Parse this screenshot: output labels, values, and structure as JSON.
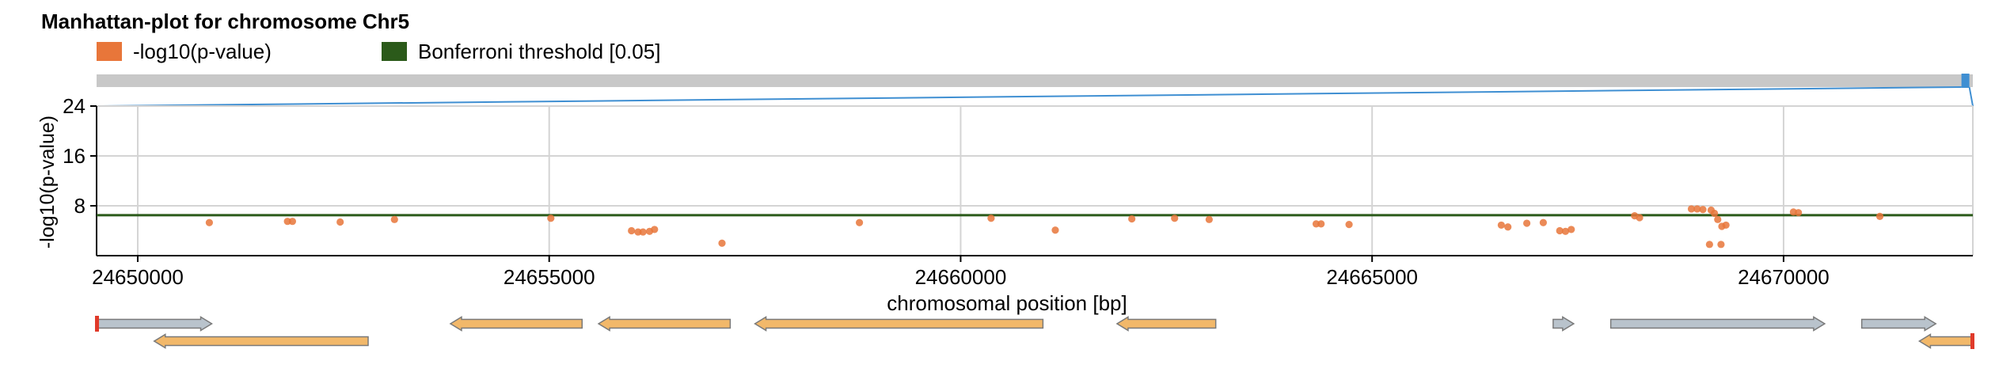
{
  "chart_data": {
    "type": "scatter",
    "title": "Manhattan-plot for chromosome Chr5",
    "xlabel": "chromosomal position [bp]",
    "ylabel": "-log10(p-value)",
    "xlim": [
      24649500,
      24672300
    ],
    "ylim": [
      0,
      24
    ],
    "xticks": [
      {
        "value": 24650000,
        "label": "24650000"
      },
      {
        "value": 24655000,
        "label": "24655000"
      },
      {
        "value": 24660000,
        "label": "24660000"
      },
      {
        "value": 24665000,
        "label": "24665000"
      },
      {
        "value": 24670000,
        "label": "24670000"
      }
    ],
    "yticks": [
      {
        "value": 24,
        "label": "24"
      },
      {
        "value": 16,
        "label": "16"
      },
      {
        "value": 8,
        "label": "8"
      }
    ],
    "grid": true,
    "legend": {
      "placement": "top-left",
      "entries": [
        {
          "label": "-log10(p-value)",
          "color": "#e8763a"
        },
        {
          "label": "Bonferroni threshold [0.05]",
          "color": "#2b5a1a"
        }
      ]
    },
    "threshold": {
      "name": "Bonferroni threshold [0.05]",
      "value": 6.5,
      "color": "#2b5a1a"
    },
    "series": [
      {
        "name": "-log10(p-value)",
        "color": "#e8763a",
        "points": [
          [
            24650870,
            5.3
          ],
          [
            24651820,
            5.5
          ],
          [
            24651880,
            5.5
          ],
          [
            24652460,
            5.4
          ],
          [
            24653120,
            5.8
          ],
          [
            24655020,
            6.0
          ],
          [
            24656000,
            4.0
          ],
          [
            24656080,
            3.8
          ],
          [
            24656140,
            3.8
          ],
          [
            24656220,
            3.9
          ],
          [
            24656280,
            4.2
          ],
          [
            24657100,
            2.0
          ],
          [
            24658770,
            5.3
          ],
          [
            24660370,
            6.0
          ],
          [
            24661150,
            4.1
          ],
          [
            24662080,
            5.9
          ],
          [
            24662600,
            6.0
          ],
          [
            24663020,
            5.8
          ],
          [
            24664320,
            5.1
          ],
          [
            24664380,
            5.1
          ],
          [
            24664720,
            5.0
          ],
          [
            24666570,
            4.9
          ],
          [
            24666650,
            4.6
          ],
          [
            24666880,
            5.2
          ],
          [
            24667080,
            5.3
          ],
          [
            24667280,
            4.0
          ],
          [
            24667350,
            3.9
          ],
          [
            24667420,
            4.2
          ],
          [
            24668190,
            6.4
          ],
          [
            24668250,
            6.1
          ],
          [
            24668880,
            7.5
          ],
          [
            24668950,
            7.5
          ],
          [
            24669020,
            7.4
          ],
          [
            24669120,
            7.3
          ],
          [
            24669160,
            6.8
          ],
          [
            24669200,
            5.8
          ],
          [
            24669250,
            4.7
          ],
          [
            24669300,
            4.9
          ],
          [
            24669100,
            1.8
          ],
          [
            24669240,
            1.8
          ],
          [
            24670120,
            7.0
          ],
          [
            24670180,
            6.9
          ],
          [
            24671170,
            6.3
          ]
        ]
      }
    ],
    "overview": {
      "range": [
        24649500,
        24672300
      ],
      "chrom_length": 24800000
    },
    "genes": [
      {
        "start": 24649500,
        "end": 24650900,
        "strand": "+",
        "row": 0,
        "color": "#b9c3cc",
        "end_mark": "start"
      },
      {
        "start": 24650200,
        "end": 24652800,
        "strand": "-",
        "row": 1,
        "color": "#f2b86a"
      },
      {
        "start": 24653800,
        "end": 24655400,
        "strand": "-",
        "row": 0,
        "color": "#f2b86a"
      },
      {
        "start": 24655600,
        "end": 24657200,
        "strand": "-",
        "row": 0,
        "color": "#f2b86a"
      },
      {
        "start": 24657500,
        "end": 24661000,
        "strand": "-",
        "row": 0,
        "color": "#f2b86a"
      },
      {
        "start": 24661900,
        "end": 24663100,
        "strand": "-",
        "row": 0,
        "color": "#f2b86a"
      },
      {
        "start": 24667200,
        "end": 24667450,
        "strand": "+",
        "row": 0,
        "color": "#b9c3cc"
      },
      {
        "start": 24667900,
        "end": 24670500,
        "strand": "+",
        "row": 0,
        "color": "#b9c3cc"
      },
      {
        "start": 24670950,
        "end": 24671850,
        "strand": "+",
        "row": 0,
        "color": "#b9c3cc"
      },
      {
        "start": 24671650,
        "end": 24672300,
        "strand": "-",
        "row": 1,
        "color": "#f2b86a",
        "end_mark": "end"
      }
    ]
  }
}
